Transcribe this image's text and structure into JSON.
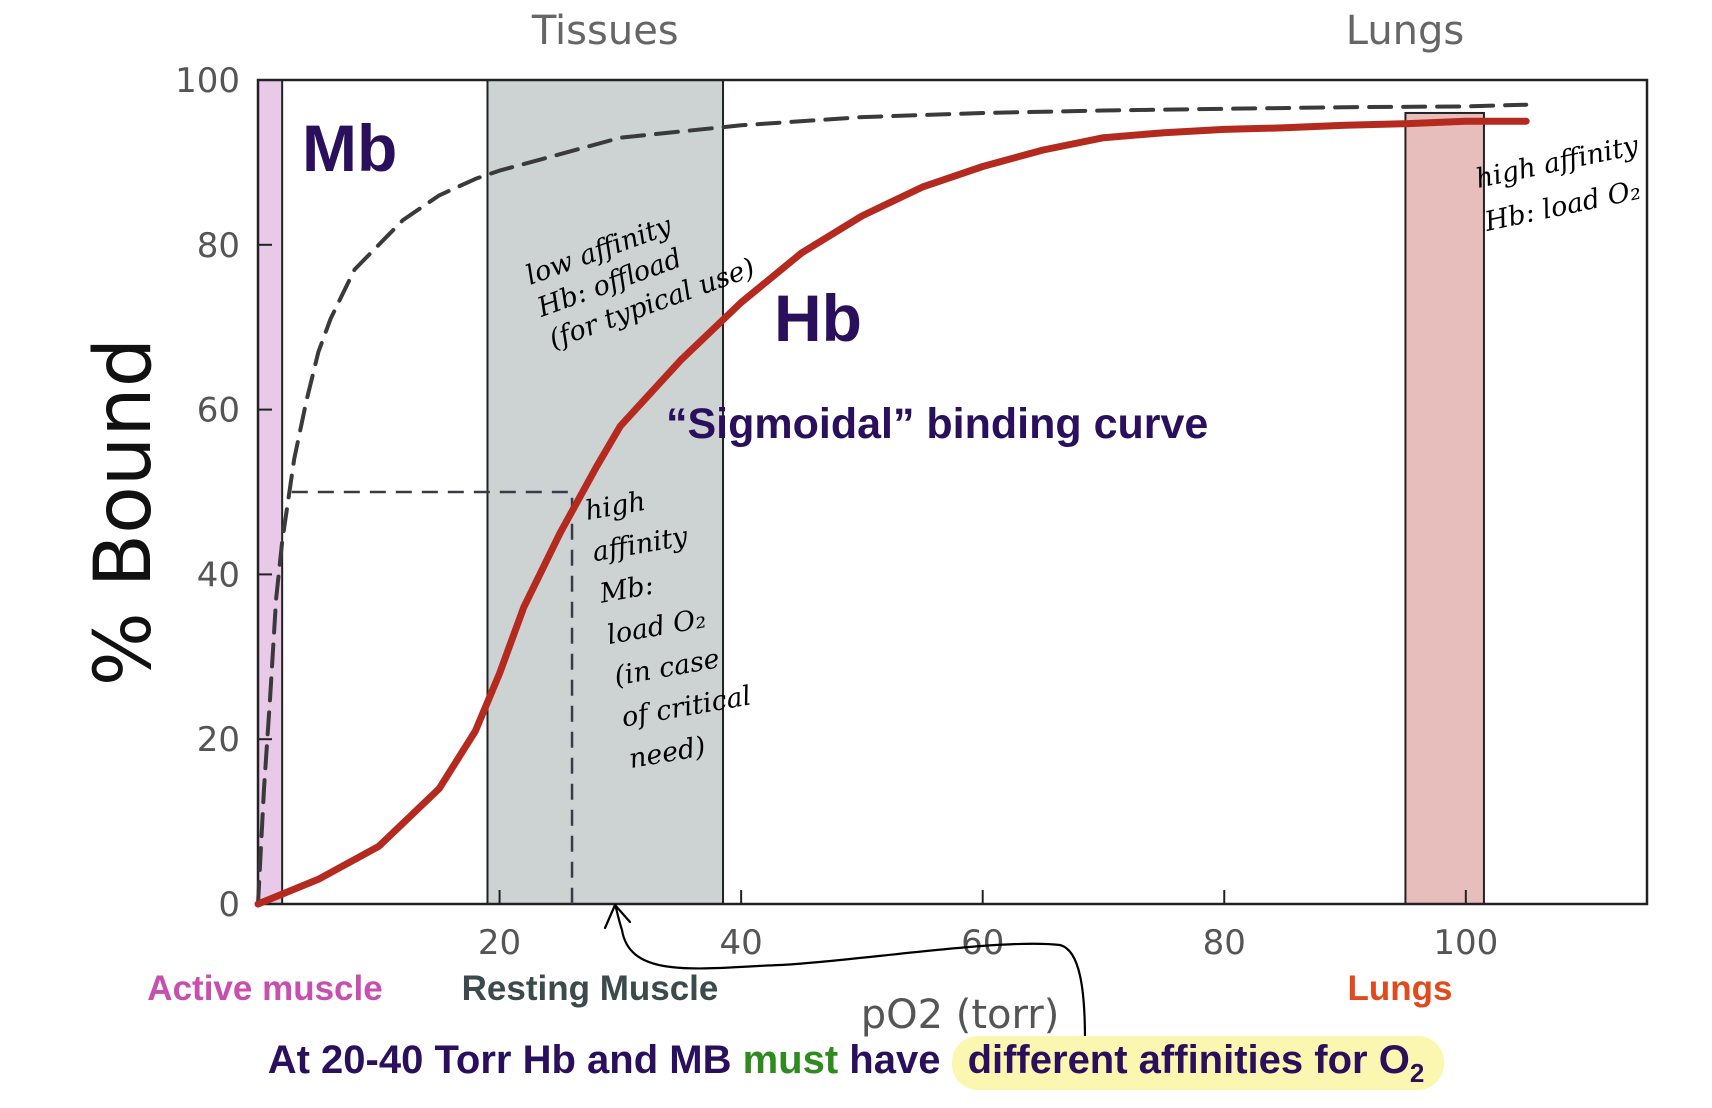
{
  "chart_data": {
    "type": "line",
    "title": "",
    "xlabel": "pO2 (torr)",
    "ylabel": "% Bound",
    "xlim": [
      0,
      115
    ],
    "ylim": [
      0,
      100
    ],
    "x_ticks": [
      20,
      40,
      60,
      80,
      100
    ],
    "y_ticks": [
      0,
      20,
      40,
      60,
      80,
      100
    ],
    "series": [
      {
        "name": "Mb",
        "style": "dashed",
        "color": "#3a3a3a",
        "x": [
          0,
          0.5,
          1,
          1.5,
          2,
          3,
          4,
          5,
          6,
          7,
          8,
          10,
          12,
          15,
          18,
          20,
          25,
          30,
          40,
          50,
          60,
          70,
          80,
          90,
          100,
          105
        ],
        "y": [
          0,
          14,
          25,
          37,
          44,
          54,
          61,
          67,
          71,
          74,
          77,
          80,
          83,
          86,
          88,
          89,
          91,
          93,
          94.5,
          95.5,
          96,
          96.3,
          96.5,
          96.7,
          96.8,
          97
        ]
      },
      {
        "name": "Hb",
        "style": "solid",
        "color": "#b52a1f",
        "x": [
          0,
          5,
          10,
          15,
          18,
          20,
          22,
          25,
          28,
          30,
          35,
          40,
          45,
          50,
          55,
          60,
          65,
          70,
          75,
          80,
          85,
          90,
          95,
          100,
          105
        ],
        "y": [
          0,
          3,
          7,
          14,
          21,
          28,
          36,
          45,
          53,
          58,
          66,
          73,
          79,
          83.5,
          87,
          89.5,
          91.5,
          93,
          93.6,
          94,
          94.2,
          94.5,
          94.7,
          95,
          95
        ]
      }
    ],
    "half_saturation_marker": {
      "y": 50,
      "x_mb": 2.8,
      "x_hb": 26
    },
    "regions": [
      {
        "label": "Active muscle",
        "x_range": [
          0,
          2
        ],
        "color": "#e8c9e8"
      },
      {
        "label": "Resting Muscle",
        "top_label": "Tissues",
        "x_range": [
          19,
          38.5
        ],
        "color": "#cdd2d2"
      },
      {
        "label": "Lungs",
        "top_label": "Lungs",
        "x_range": [
          95,
          101.5
        ],
        "y_max": 96,
        "color": "#e7bebb"
      }
    ],
    "region_label_colors": {
      "Active muscle": "#c64fb0",
      "Resting Muscle": "#3b4a4a",
      "Lungs": "#e04a1d"
    },
    "annotations": {
      "mb_label": "Mb",
      "hb_label": "Hb",
      "sigmoidal": "“Sigmoidal” binding curve",
      "hb_low_affinity": [
        "low affinity",
        "Hb: offload",
        "(for typical use)"
      ],
      "mb_high_affinity": [
        "high",
        "affinity",
        "Mb:",
        "load O₂",
        "(in case",
        "of critical",
        "need)"
      ],
      "hb_high_affinity": [
        "high affinity",
        "Hb: load O₂"
      ]
    }
  },
  "caption": {
    "part1": "At 20-40 Torr Hb and MB ",
    "must": "must",
    "part2": " have ",
    "highlight": "different affinities for O",
    "sub": "2"
  }
}
